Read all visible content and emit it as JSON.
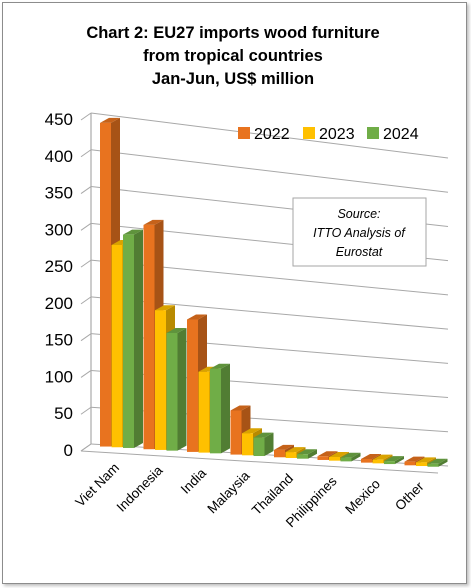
{
  "chart_data": {
    "type": "bar",
    "title": "Chart 2: EU27 imports wood furniture",
    "title_lines": [
      "Chart 2: EU27 imports wood furniture",
      "from tropical countries",
      "Jan-Jun, US$ million"
    ],
    "categories": [
      "Viet Nam",
      "Indonesia",
      "India",
      "Malaysia",
      "Thailand",
      "Philippines",
      "Mexico",
      "Other"
    ],
    "series": [
      {
        "name": "2022",
        "color": "#e8731f",
        "values": [
          440,
          305,
          180,
          60,
          10,
          5,
          5,
          5
        ]
      },
      {
        "name": "2023",
        "color": "#ffc000",
        "values": [
          275,
          190,
          110,
          30,
          8,
          5,
          5,
          5
        ]
      },
      {
        "name": "2024",
        "color": "#70ad47",
        "values": [
          290,
          160,
          115,
          25,
          6,
          5,
          4,
          4
        ]
      }
    ],
    "y_ticks": [
      "0",
      "50",
      "100",
      "150",
      "200",
      "250",
      "300",
      "350",
      "400",
      "450"
    ],
    "ylim": [
      0,
      450
    ],
    "grid": true,
    "style": "3d-clustered-bar",
    "legend_position": "top-right",
    "annotation": {
      "lines": [
        "Source:",
        "ITTO Analysis of",
        "Eurostat"
      ]
    }
  }
}
